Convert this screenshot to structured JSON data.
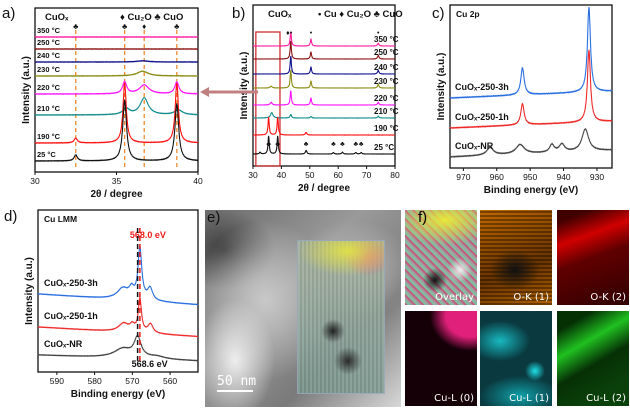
{
  "panels": {
    "a": "a)",
    "b": "b)",
    "c": "c)",
    "d": "d)",
    "e": "e)",
    "f": "f)"
  },
  "tem": {
    "scale_bar": "50 nm"
  },
  "maps": [
    {
      "label": "Overlay",
      "color": "#c8c8a0"
    },
    {
      "label": "O-K (1)",
      "color": "#e07a00"
    },
    {
      "label": "O-K (2)",
      "color": "#d40000"
    },
    {
      "label": "Cu-L (0)",
      "color": "#e0207a"
    },
    {
      "label": "Cu-L (1)",
      "color": "#10d0d8"
    },
    {
      "label": "Cu-L (2)",
      "color": "#20d020"
    }
  ],
  "chart_data": [
    {
      "id": "a",
      "type": "line",
      "title": "",
      "annotations": [
        "CuOₓ",
        "♦ Cu₂O ♣ CuO"
      ],
      "xlabel": "2θ / degree",
      "ylabel": "Intensity (a.u.)",
      "xlim": [
        30,
        40
      ],
      "xticks": [
        30,
        35,
        40
      ],
      "grid": false,
      "reference_lines": [
        {
          "x": 32.5,
          "marker": "♣"
        },
        {
          "x": 35.5,
          "marker": "♣"
        },
        {
          "x": 36.7,
          "marker": "♦"
        },
        {
          "x": 38.7,
          "marker": "♣"
        }
      ],
      "reference_color": "#f08a30",
      "series": [
        {
          "name": "350 °C",
          "color": "#ff1aa0",
          "peaks": []
        },
        {
          "name": "250 °C",
          "color": "#8b1010",
          "peaks": []
        },
        {
          "name": "240 °C",
          "color": "#10108b",
          "peaks": [
            [
              36.6,
              0.02,
              0.4
            ]
          ]
        },
        {
          "name": "230 °C",
          "color": "#8b8b10",
          "peaks": [
            [
              36.6,
              0.08,
              0.4
            ]
          ]
        },
        {
          "name": "220 °C",
          "color": "#ff10ff",
          "peaks": [
            [
              35.5,
              0.2,
              0.15
            ],
            [
              36.7,
              0.15,
              0.35
            ],
            [
              38.7,
              0.2,
              0.15
            ]
          ]
        },
        {
          "name": "210 °C",
          "color": "#108b8b",
          "peaks": [
            [
              35.6,
              0.1,
              0.25
            ],
            [
              36.7,
              0.28,
              0.3
            ],
            [
              38.8,
              0.08,
              0.3
            ]
          ]
        },
        {
          "name": "190 °C",
          "color": "#ff1010",
          "peaks": [
            [
              32.5,
              0.08,
              0.12
            ],
            [
              35.5,
              1.0,
              0.12
            ],
            [
              38.7,
              1.0,
              0.12
            ]
          ]
        },
        {
          "name": "25 °C",
          "color": "#101010",
          "peaks": [
            [
              32.5,
              0.1,
              0.12
            ],
            [
              35.5,
              1.0,
              0.14
            ],
            [
              38.7,
              0.95,
              0.14
            ]
          ]
        }
      ]
    },
    {
      "id": "b",
      "type": "line",
      "title": "",
      "annotations": [
        "CuOₓ",
        "• Cu ♦ Cu₂O ♣ CuO"
      ],
      "xlabel": "2θ / degree",
      "ylabel": "Intensity (a.u.)",
      "xlim": [
        30,
        80
      ],
      "xticks": [
        30,
        40,
        50,
        60,
        70,
        80
      ],
      "grid": false,
      "highlight_range": [
        31,
        39.5
      ],
      "top_markers": [
        {
          "x": 42.3,
          "marker": "♦"
        },
        {
          "x": 43.4,
          "marker": "•"
        },
        {
          "x": 50.4,
          "marker": "•"
        },
        {
          "x": 74.1,
          "marker": "•"
        }
      ],
      "bottom_markers": [
        {
          "x": 35.5,
          "marker": "♣"
        },
        {
          "x": 38.7,
          "marker": "♣"
        },
        {
          "x": 48.7,
          "marker": "♣"
        },
        {
          "x": 58.3,
          "marker": "♣"
        },
        {
          "x": 61.5,
          "marker": "♣"
        },
        {
          "x": 66.2,
          "marker": "♣"
        },
        {
          "x": 68.1,
          "marker": "♣"
        }
      ],
      "series": [
        {
          "name": "350 °C",
          "color": "#ff1aa0",
          "peaks": [
            [
              43.3,
              0.8,
              0.25
            ],
            [
              50.4,
              0.4,
              0.25
            ],
            [
              74.1,
              0.15,
              0.3
            ]
          ]
        },
        {
          "name": "250 °C",
          "color": "#8b1010",
          "peaks": [
            [
              43.3,
              1.0,
              0.25
            ],
            [
              50.4,
              0.4,
              0.25
            ],
            [
              74.1,
              0.2,
              0.3
            ]
          ]
        },
        {
          "name": "240 °C",
          "color": "#10108b",
          "peaks": [
            [
              43.3,
              1.0,
              0.25
            ],
            [
              50.4,
              0.4,
              0.25
            ],
            [
              74.1,
              0.2,
              0.3
            ]
          ]
        },
        {
          "name": "230 °C",
          "color": "#8b8b10",
          "peaks": [
            [
              36.4,
              0.1,
              0.4
            ],
            [
              43.3,
              1.0,
              0.25
            ],
            [
              50.4,
              0.4,
              0.25
            ],
            [
              74.1,
              0.2,
              0.3
            ]
          ]
        },
        {
          "name": "220 °C",
          "color": "#ff10ff",
          "peaks": [
            [
              36.4,
              0.15,
              0.4
            ],
            [
              43.3,
              0.8,
              0.25
            ],
            [
              50.4,
              0.4,
              0.25
            ],
            [
              74.1,
              0.15,
              0.3
            ]
          ]
        },
        {
          "name": "210 °C",
          "color": "#108b8b",
          "peaks": [
            [
              36.6,
              0.3,
              0.5
            ],
            [
              43.3,
              0.2,
              0.3
            ],
            [
              50.4,
              0.08,
              0.3
            ],
            [
              74.1,
              0.1,
              0.3
            ]
          ]
        },
        {
          "name": "190 °C",
          "color": "#ff1010",
          "peaks": [
            [
              35.5,
              1.0,
              0.25
            ],
            [
              38.7,
              1.0,
              0.25
            ],
            [
              48.7,
              0.15,
              0.3
            ]
          ]
        },
        {
          "name": "25 °C",
          "color": "#101010",
          "peaks": [
            [
              32.5,
              0.1,
              0.25
            ],
            [
              35.5,
              1.0,
              0.25
            ],
            [
              38.7,
              1.0,
              0.25
            ],
            [
              48.7,
              0.2,
              0.3
            ],
            [
              58.3,
              0.08,
              0.3
            ],
            [
              61.5,
              0.1,
              0.3
            ],
            [
              66.2,
              0.08,
              0.3
            ],
            [
              68.1,
              0.08,
              0.3
            ]
          ]
        }
      ]
    },
    {
      "id": "c",
      "type": "line",
      "title": "Cu 2p",
      "xlabel": "Binding energy (eV)",
      "ylabel": "Intensity (a.u.)",
      "xlim": [
        974,
        925.5
      ],
      "xticks": [
        970,
        960,
        950,
        940,
        930
      ],
      "grid": false,
      "series": [
        {
          "name": "CuOₓ-250-3h",
          "color": "#2a6fe0",
          "background": [
            0,
            0.08
          ],
          "peaks": [
            [
              952.3,
              0.32,
              0.6
            ],
            [
              932.4,
              1.0,
              0.55
            ]
          ]
        },
        {
          "name": "CuOₓ-250-1h",
          "color": "#ee2a2a",
          "background": [
            0,
            0.08
          ],
          "peaks": [
            [
              952.3,
              0.25,
              0.6
            ],
            [
              932.4,
              0.85,
              0.55
            ]
          ]
        },
        {
          "name": "CuOₓ-NR",
          "color": "#444444",
          "background": [
            0,
            0.08
          ],
          "peaks": [
            [
              962,
              0.09,
              1.2
            ],
            [
              953,
              0.11,
              1.5
            ],
            [
              943.5,
              0.09,
              0.8
            ],
            [
              940.5,
              0.09,
              1.0
            ],
            [
              933.5,
              0.26,
              1.2
            ]
          ]
        }
      ]
    },
    {
      "id": "d",
      "type": "line",
      "title": "Cu LMM",
      "xlabel": "Binding energy (eV)",
      "ylabel": "Intensity (a.u.)",
      "xlim": [
        595,
        552.6
      ],
      "xticks": [
        590,
        580,
        570,
        560
      ],
      "grid": false,
      "reference_lines": [
        {
          "x": 568.0,
          "label": "568.0 eV",
          "color": "#ee1c1c"
        },
        {
          "x": 568.6,
          "label": "568.6 eV",
          "color": "#111111"
        }
      ],
      "series": [
        {
          "name": "CuOₓ-250-3h",
          "color": "#2a6fe0",
          "background": [
            0,
            -0.18
          ],
          "peaks": [
            [
              568.0,
              0.85,
              0.6
            ],
            [
              572.5,
              0.18,
              1.8
            ],
            [
              570.2,
              0.15,
              0.8
            ],
            [
              565.3,
              0.2,
              0.8
            ]
          ]
        },
        {
          "name": "CuOₓ-250-1h",
          "color": "#ee2a2a",
          "background": [
            0,
            -0.16
          ],
          "peaks": [
            [
              568.0,
              0.55,
              0.5
            ],
            [
              572.3,
              0.14,
              1.6
            ],
            [
              570.0,
              0.1,
              0.8
            ],
            [
              565.2,
              0.15,
              0.8
            ]
          ]
        },
        {
          "name": "CuOₓ-NR",
          "color": "#444444",
          "background": [
            0,
            -0.1
          ],
          "peaks": [
            [
              568.6,
              0.33,
              1.1
            ],
            [
              572.5,
              0.15,
              2.8
            ],
            [
              563.5,
              0.04,
              2.5
            ]
          ]
        }
      ]
    }
  ]
}
